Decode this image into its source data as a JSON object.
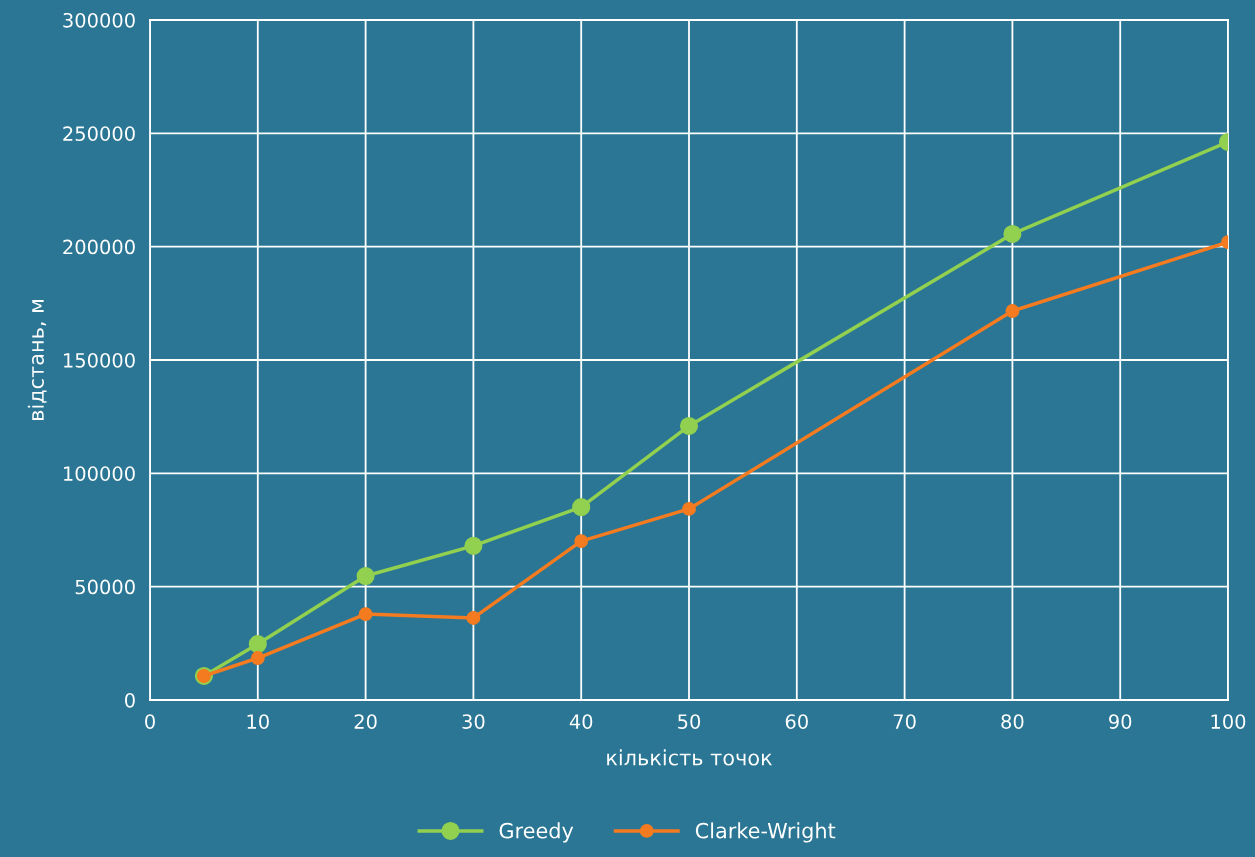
{
  "chart_data": {
    "type": "line",
    "xlabel": "кількість точок",
    "ylabel": "відстань, м",
    "series": [
      {
        "name": "Greedy",
        "color": "#92d050",
        "x": [
          5,
          10,
          20,
          30,
          40,
          50,
          80,
          100
        ],
        "values": [
          10600,
          24700,
          54700,
          68000,
          85100,
          120900,
          205600,
          246200
        ]
      },
      {
        "name": "Clarke-Wright",
        "color": "#f47b20",
        "x": [
          5,
          10,
          20,
          30,
          40,
          50,
          80,
          100
        ],
        "values": [
          10600,
          18500,
          37900,
          36200,
          70100,
          84300,
          171600,
          202000
        ]
      }
    ],
    "xlim": [
      0,
      100
    ],
    "xticks": [
      0,
      10,
      20,
      30,
      40,
      50,
      60,
      70,
      80,
      90,
      100
    ],
    "ylim": [
      0,
      300000
    ],
    "yticks": [
      0,
      50000,
      100000,
      150000,
      200000,
      250000,
      300000
    ],
    "grid": true,
    "legend": "bottom",
    "marker": "circle",
    "line_style": "solid"
  }
}
